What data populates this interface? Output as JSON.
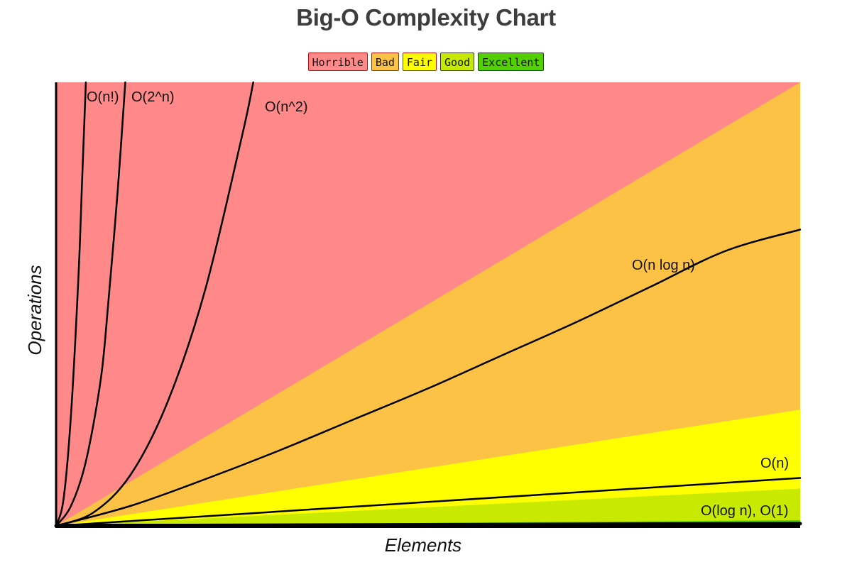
{
  "chart_data": {
    "type": "area",
    "title": "Big-O Complexity Chart",
    "xlabel": "Elements",
    "ylabel": "Operations",
    "legend_position": "top-center",
    "legend": [
      {
        "label": "Horrible",
        "color": "#ff8888",
        "border": "#c01515"
      },
      {
        "label": "Bad",
        "color": "#fcc246",
        "border": "#c01515"
      },
      {
        "label": "Fair",
        "color": "#ffff00",
        "border": "#c01515"
      },
      {
        "label": "Good",
        "color": "#c8ea00",
        "border": "#333333"
      },
      {
        "label": "Excellent",
        "color": "#53d000",
        "border": "#333333"
      }
    ],
    "xlim": [
      0,
      100
    ],
    "ylim": [
      0,
      1000
    ],
    "regions": [
      {
        "category": "Horrible",
        "color": "#ff8888",
        "boundary_y_at_xmax": 1000
      },
      {
        "category": "Bad",
        "color": "#fcc246",
        "boundary_y_at_xmax": 1000
      },
      {
        "category": "Fair",
        "color": "#ffff00",
        "boundary_y_at_xmax": 262
      },
      {
        "category": "Good",
        "color": "#c8ea00",
        "boundary_y_at_xmax": 84
      },
      {
        "category": "Excellent",
        "color": "#53d000",
        "boundary_y_at_xmax": 13
      }
    ],
    "series": [
      {
        "name": "O(n!)",
        "x": [
          0,
          1,
          2,
          3,
          3.5,
          4
        ],
        "y": [
          0,
          60,
          250,
          560,
          780,
          1000
        ]
      },
      {
        "name": "O(2^n)",
        "x": [
          0,
          2,
          4,
          6,
          7,
          8.3,
          9.3
        ],
        "y": [
          0,
          45,
          145,
          330,
          500,
          760,
          1000
        ]
      },
      {
        "name": "O(n^2)",
        "x": [
          0,
          5,
          10,
          15,
          20,
          25,
          26.5
        ],
        "y": [
          0,
          30,
          115,
          280,
          530,
          880,
          1000
        ]
      },
      {
        "name": "O(n log n)",
        "x": [
          0,
          10,
          20,
          30,
          40,
          50,
          60,
          70,
          80,
          90,
          100
        ],
        "y": [
          0,
          45,
          105,
          170,
          240,
          310,
          385,
          460,
          540,
          620,
          668
        ]
      },
      {
        "name": "O(n)",
        "x": [
          0,
          100
        ],
        "y": [
          0,
          108
        ]
      },
      {
        "name": "O(log n), O(1)",
        "x": [
          0,
          100
        ],
        "y": [
          0,
          5
        ]
      }
    ]
  }
}
